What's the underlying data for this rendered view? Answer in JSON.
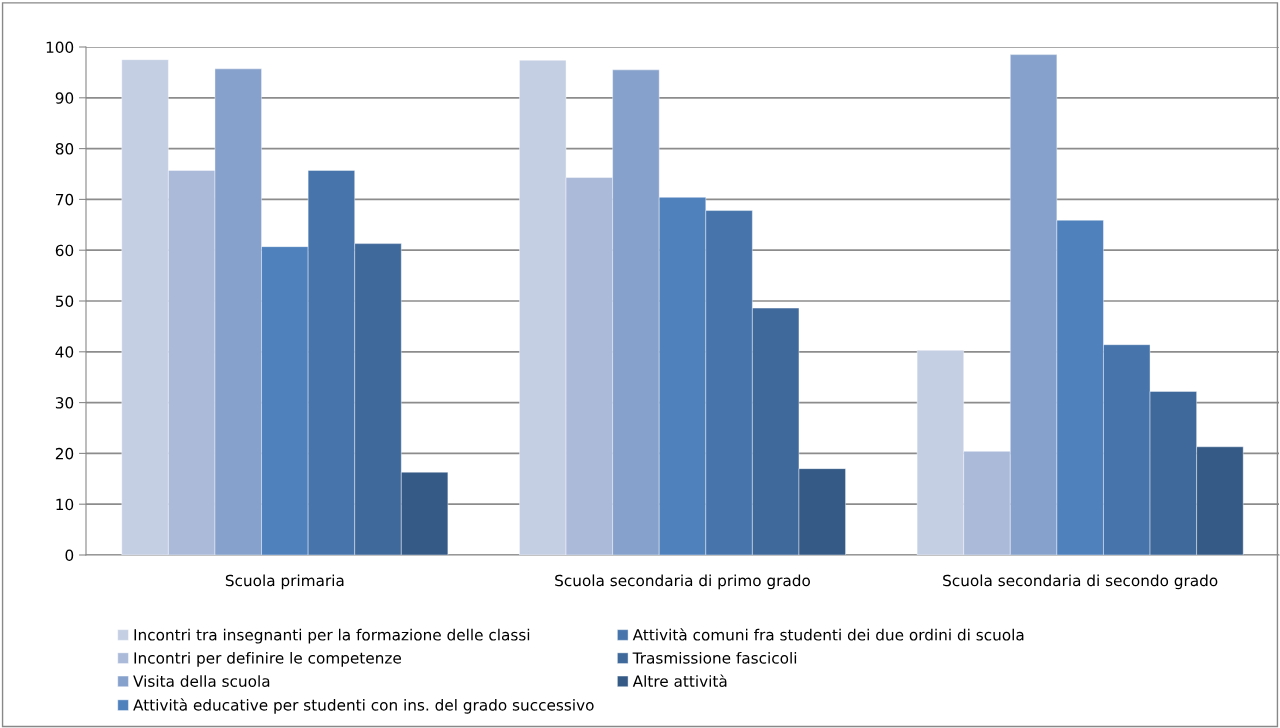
{
  "chart_data": {
    "type": "bar",
    "categories": [
      "Scuola primaria",
      "Scuola secondaria di primo grado",
      "Scuola secondaria di secondo grado"
    ],
    "series": [
      {
        "name": "Incontri tra insegnanti per la formazione delle classi",
        "color": "#c4cfe3",
        "values": [
          97.5,
          97.4,
          40.3
        ]
      },
      {
        "name": "Incontri per definire le competenze",
        "color": "#abbad8",
        "values": [
          75.7,
          74.3,
          20.4
        ]
      },
      {
        "name": "Visita della scuola",
        "color": "#86a1cb",
        "values": [
          95.7,
          95.5,
          98.5
        ]
      },
      {
        "name": "Attività educative per studenti con ins. del grado successivo",
        "color": "#4f81bd",
        "values": [
          60.7,
          70.4,
          65.9
        ]
      },
      {
        "name": "Attività comuni fra studenti dei due ordini di scuola",
        "color": "#4775ab",
        "values": [
          75.7,
          67.8,
          41.4
        ]
      },
      {
        "name": "Trasmissione fascicoli",
        "color": "#40699b",
        "values": [
          61.3,
          48.6,
          32.2
        ]
      },
      {
        "name": "Altre attività",
        "color": "#355a86",
        "values": [
          16.3,
          17.0,
          21.3
        ]
      }
    ],
    "ylim": [
      0,
      100
    ],
    "yticks": [
      0,
      10,
      20,
      30,
      40,
      50,
      60,
      70,
      80,
      90,
      100
    ],
    "grid": "y",
    "legend": "bottom"
  }
}
